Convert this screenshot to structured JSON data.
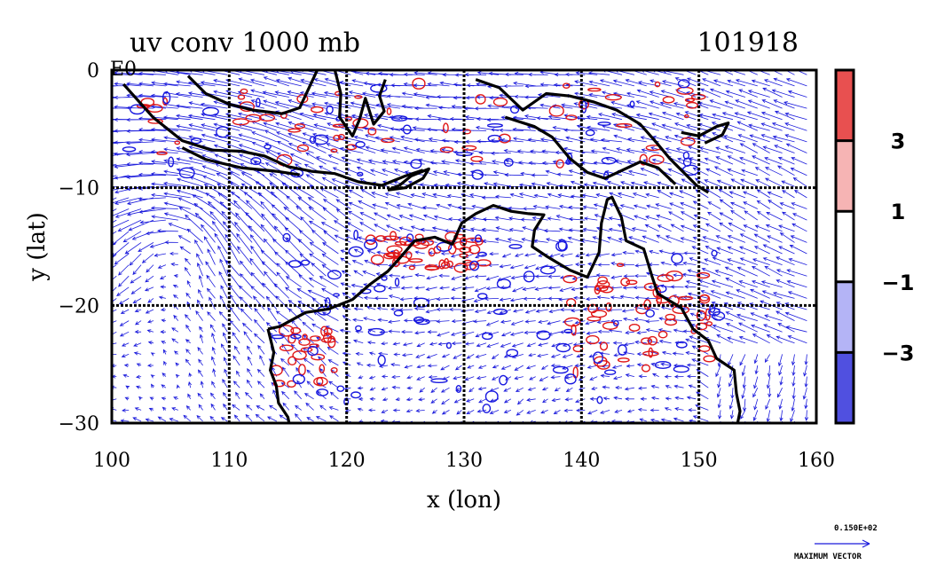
{
  "chart_data": {
    "type": "vector_contour_map",
    "title": "uv conv 1000 mb",
    "time_label": "101918",
    "xlabel": "x (lon)",
    "ylabel": "y (lat)",
    "xlim": [
      100,
      160
    ],
    "ylim": [
      -30,
      0
    ],
    "x_ticks": [
      100,
      110,
      120,
      130,
      140,
      150,
      160
    ],
    "y_ticks": [
      {
        "value": 0,
        "label": "0"
      },
      {
        "value": -10,
        "label": "−10"
      },
      {
        "value": -20,
        "label": "−20"
      },
      {
        "value": -30,
        "label": "−30"
      }
    ],
    "corner_mark": "E0",
    "grid": true,
    "grid_lon": [
      110,
      120,
      130,
      140,
      150
    ],
    "grid_lat": [
      -10,
      -20
    ],
    "colorbar": {
      "levels": [
        {
          "label": "3",
          "color": "#f6b4b4"
        },
        {
          "label": "1",
          "color": "#ffffff"
        },
        {
          "label": "−1",
          "color": "#b4b4f6"
        },
        {
          "label": "−3",
          "color": ""
        }
      ],
      "bands": [
        "#e85050",
        "#f6b4b4",
        "#ffffff",
        "#b4b4f6",
        "#5050e0"
      ]
    },
    "reference_vector": {
      "magnitude": "0.150E+02",
      "caption": "MAXIMUM VECTOR"
    },
    "colors": {
      "vector": "#1a1adc",
      "positive_contour": "#e01818",
      "negative_contour": "#1818e0",
      "coast": "#000000"
    },
    "coastlines": {
      "sumatra_java": [
        [
          101,
          -1.2
        ],
        [
          103.5,
          -4
        ],
        [
          106,
          -6
        ],
        [
          108.5,
          -6.8
        ],
        [
          111,
          -6.9
        ],
        [
          113,
          -7.3
        ],
        [
          115,
          -8.2
        ],
        [
          117,
          -8.6
        ],
        [
          119,
          -8.8
        ],
        [
          121,
          -9.5
        ],
        [
          123,
          -9.8
        ],
        [
          125,
          -9.0
        ],
        [
          126.5,
          -8.5
        ]
      ],
      "java_south": [
        [
          106,
          -6.6
        ],
        [
          108,
          -7.6
        ],
        [
          111,
          -8.3
        ],
        [
          114,
          -8.6
        ],
        [
          116,
          -8.9
        ]
      ],
      "borneo": [
        [
          106.5,
          -0.5
        ],
        [
          108,
          -2
        ],
        [
          110,
          -2.9
        ],
        [
          112,
          -3.4
        ],
        [
          114.5,
          -3.7
        ],
        [
          116,
          -3.2
        ],
        [
          116.8,
          -1.5
        ],
        [
          117.5,
          0
        ]
      ],
      "sulawesi": [
        [
          119,
          0
        ],
        [
          119.5,
          -2
        ],
        [
          119.4,
          -4
        ],
        [
          120.5,
          -5.6
        ],
        [
          121.1,
          -4.2
        ],
        [
          121.6,
          -2.4
        ],
        [
          122.3,
          -4.6
        ],
        [
          123.2,
          -3.5
        ],
        [
          122.8,
          -2.2
        ],
        [
          123.3,
          -0.8
        ]
      ],
      "timor": [
        [
          123.5,
          -10.2
        ],
        [
          124.5,
          -9.8
        ],
        [
          125.5,
          -9.0
        ],
        [
          127,
          -8.4
        ],
        [
          126.5,
          -9.2
        ],
        [
          125,
          -10
        ],
        [
          123.5,
          -10.2
        ]
      ],
      "new_guinea": [
        [
          131,
          -0.8
        ],
        [
          133,
          -1.5
        ],
        [
          135,
          -3.4
        ],
        [
          137,
          -2
        ],
        [
          139,
          -2.2
        ],
        [
          141,
          -2.7
        ],
        [
          143,
          -3.4
        ],
        [
          145,
          -4.6
        ],
        [
          146.5,
          -6.3
        ],
        [
          147.5,
          -7.5
        ],
        [
          148.5,
          -8.5
        ],
        [
          149.8,
          -9.8
        ],
        [
          150.8,
          -10.4
        ]
      ],
      "new_guinea_south": [
        [
          133.5,
          -4
        ],
        [
          136,
          -4.8
        ],
        [
          137.5,
          -5.7
        ],
        [
          139,
          -7.5
        ],
        [
          140.5,
          -8.7
        ],
        [
          142,
          -9.2
        ],
        [
          143.5,
          -8.5
        ],
        [
          145,
          -7.8
        ],
        [
          146.5,
          -8.3
        ],
        [
          148,
          -9.7
        ]
      ],
      "new_britain": [
        [
          148.5,
          -5.3
        ],
        [
          150,
          -5.6
        ],
        [
          151.5,
          -4.8
        ],
        [
          152.5,
          -4.5
        ],
        [
          152,
          -5.5
        ],
        [
          150.5,
          -6.2
        ]
      ],
      "australia": [
        [
          113.3,
          -22
        ],
        [
          114.3,
          -21.8
        ],
        [
          116.5,
          -20.6
        ],
        [
          118.5,
          -20.3
        ],
        [
          120.5,
          -19.5
        ],
        [
          122,
          -18.2
        ],
        [
          123.5,
          -17.1
        ],
        [
          124.5,
          -16
        ],
        [
          125.8,
          -14.5
        ],
        [
          127.5,
          -14.2
        ],
        [
          129,
          -14.8
        ],
        [
          129.8,
          -13
        ],
        [
          131,
          -12.2
        ],
        [
          132.5,
          -11.5
        ],
        [
          134,
          -12
        ],
        [
          135.5,
          -12.2
        ],
        [
          136.8,
          -12.3
        ],
        [
          136,
          -13.6
        ],
        [
          135.8,
          -15
        ],
        [
          137,
          -15.8
        ],
        [
          139,
          -17
        ],
        [
          140.5,
          -17.6
        ],
        [
          141.5,
          -15.5
        ],
        [
          141.7,
          -13
        ],
        [
          142.2,
          -11
        ],
        [
          142.6,
          -10.8
        ],
        [
          143.4,
          -12.5
        ],
        [
          143.8,
          -14.5
        ],
        [
          145.3,
          -15.2
        ],
        [
          146,
          -17.5
        ],
        [
          146.5,
          -19
        ],
        [
          148.5,
          -20.2
        ],
        [
          149.5,
          -22
        ],
        [
          150.8,
          -23
        ],
        [
          151.5,
          -24.5
        ],
        [
          153,
          -25.5
        ],
        [
          153.2,
          -27.5
        ],
        [
          153.5,
          -29
        ],
        [
          153.3,
          -30
        ]
      ],
      "australia_west": [
        [
          113.3,
          -22
        ],
        [
          113.8,
          -24
        ],
        [
          113.5,
          -25.5
        ],
        [
          114,
          -26.8
        ],
        [
          114.2,
          -28.3
        ],
        [
          115,
          -29.5
        ],
        [
          115.1,
          -30
        ]
      ]
    }
  }
}
